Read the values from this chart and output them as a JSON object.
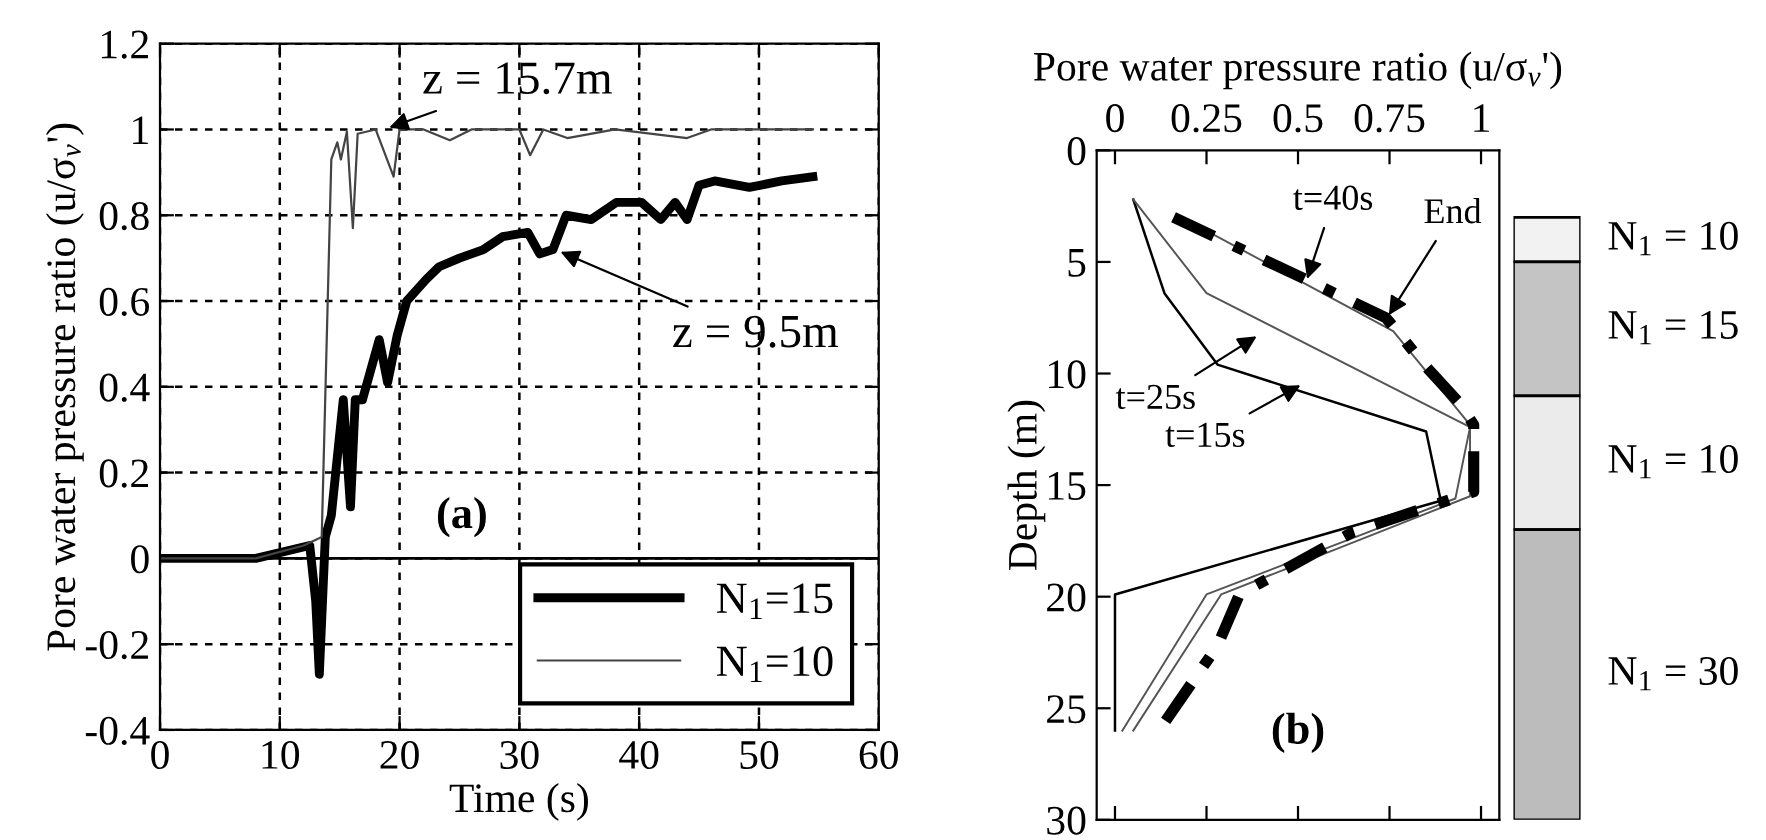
{
  "chart_data": [
    {
      "type": "line",
      "xlabel": "Time (s)",
      "ylabel": "Pore water pressure ratio (u/σ$_{v}$')",
      "xlim": [
        0,
        60
      ],
      "xticks": [
        0,
        10,
        20,
        30,
        40,
        50,
        60
      ],
      "ylim": [
        -0.4,
        1.2
      ],
      "yticks": [
        -0.4,
        -0.2,
        0,
        0.2,
        0.4,
        0.6,
        0.8,
        1,
        1.2
      ],
      "grid": true,
      "legend": "bottom right",
      "line_style": "solid",
      "marker": "none",
      "ref_lines": [
        {
          "axis": "y",
          "value": 0,
          "color": "#000000"
        }
      ],
      "annotations": [
        {
          "text": "z = 15.7m",
          "x": 18.7,
          "y": 1.0
        },
        {
          "text": "z = 9.5m",
          "x": 33,
          "y": 0.72
        },
        "(a)"
      ],
      "series": [
        {
          "name": "N$_{1}$=15",
          "color": "#000000",
          "x": [
            0,
            8,
            12.5,
            13.0,
            13.3,
            13.8,
            14.3,
            15.3,
            15.9,
            16.3,
            16.9,
            18.3,
            19.0,
            19.8,
            20.6,
            22.2,
            23.3,
            25,
            27,
            28.6,
            30.7,
            31.7,
            32.8,
            33.9,
            36,
            38.1,
            40.2,
            41.8,
            43,
            44,
            45,
            46.3,
            49.2,
            51.9,
            54.5
          ],
          "values": [
            0,
            0,
            0.03,
            -0.1,
            -0.27,
            0.05,
            0.1,
            0.37,
            0.12,
            0.37,
            0.37,
            0.51,
            0.41,
            0.52,
            0.6,
            0.65,
            0.68,
            0.7,
            0.72,
            0.75,
            0.76,
            0.71,
            0.72,
            0.8,
            0.79,
            0.83,
            0.83,
            0.79,
            0.83,
            0.79,
            0.87,
            0.88,
            0.865,
            0.88,
            0.89
          ]
        },
        {
          "name": "N$_{1}$=10",
          "color": "#444444",
          "x": [
            0,
            8,
            12,
            13.5,
            14.3,
            14.8,
            15.1,
            15.6,
            16.1,
            16.5,
            18,
            19.5,
            20,
            22,
            24.2,
            26,
            30,
            30.9,
            32,
            34,
            38,
            44,
            46,
            50,
            54.5
          ],
          "values": [
            0,
            0,
            0.03,
            0.05,
            0.93,
            0.97,
            0.93,
            0.995,
            0.77,
            0.99,
            1.0,
            0.89,
            1.0,
            1.0,
            0.975,
            1.0,
            1.0,
            0.94,
            1.0,
            0.98,
            1.0,
            0.98,
            1.0,
            1.0,
            1.0
          ]
        }
      ]
    },
    {
      "type": "line",
      "xlabel": "Pore water pressure ratio (u/σ$_{v}$')",
      "ylabel": "Depth (m)",
      "xlim": [
        -0.05,
        1.05
      ],
      "xticks": [
        0,
        0.25,
        0.5,
        0.75,
        1
      ],
      "ylim": [
        30,
        0
      ],
      "yticks": [
        0,
        5,
        10,
        15,
        20,
        25,
        30
      ],
      "grid": false,
      "annotations": [
        {
          "text": "t=40s",
          "x": 0.52,
          "y": 6.0
        },
        {
          "text": "End",
          "x": 0.74,
          "y": 7.6
        },
        {
          "text": "t=25s",
          "x": 0.4,
          "y": 8.2
        },
        {
          "text": "t=15s",
          "x": 0.52,
          "y": 10.4
        },
        "(b)"
      ],
      "series": [
        {
          "color": "#000000",
          "line_style": "solid",
          "x": [
            0.05,
            0.135,
            0.28,
            0.85,
            0.89,
            0,
            0
          ],
          "values": [
            2.2,
            6.4,
            9.6,
            12.6,
            15.7,
            19.9,
            26
          ]
        },
        {
          "color": "#555555",
          "line_style": "solid",
          "x": [
            0.05,
            0.25,
            0.97,
            0.93,
            0.25,
            0.02
          ],
          "values": [
            2.2,
            6.4,
            12.4,
            15.6,
            19.9,
            26
          ]
        },
        {
          "color": "#555555",
          "line_style": "solid",
          "x": [
            0.17,
            0.76,
            0.82,
            0.97,
            0.97,
            0.29,
            0.05
          ],
          "values": [
            2.9,
            8.1,
            9.3,
            12.3,
            15.5,
            19.9,
            26
          ]
        },
        {
          "color": "#000000",
          "line_style": "dashed",
          "x": [
            0.16,
            0.51,
            0.74,
            0.85,
            0.94,
            0.98,
            0.98,
            0.65,
            0.34,
            0.28,
            0.12
          ],
          "values": [
            3.0,
            5.7,
            7.5,
            9.7,
            11.3,
            12.3,
            15.3,
            17.1,
            19.9,
            22.2,
            26
          ]
        }
      ]
    },
    {
      "type": "bar",
      "categories": [
        null
      ],
      "ylim": [
        30,
        0
      ],
      "tick_labels": false,
      "series": [
        {
          "name": "N$_{1}$ = 10",
          "color": "#f2f2f2",
          "base": [
            3
          ],
          "values": [
            2
          ]
        },
        {
          "name": "N$_{1}$ = 15",
          "color": "#c4c4c4",
          "base": [
            5
          ],
          "values": [
            6
          ]
        },
        {
          "name": "N$_{1}$ = 10",
          "color": "#ebebeb",
          "base": [
            11
          ],
          "values": [
            6
          ]
        },
        {
          "name": "N$_{1}$ = 30",
          "color": "#bcbcbc",
          "base": [
            17
          ],
          "values": [
            13
          ]
        }
      ]
    }
  ]
}
